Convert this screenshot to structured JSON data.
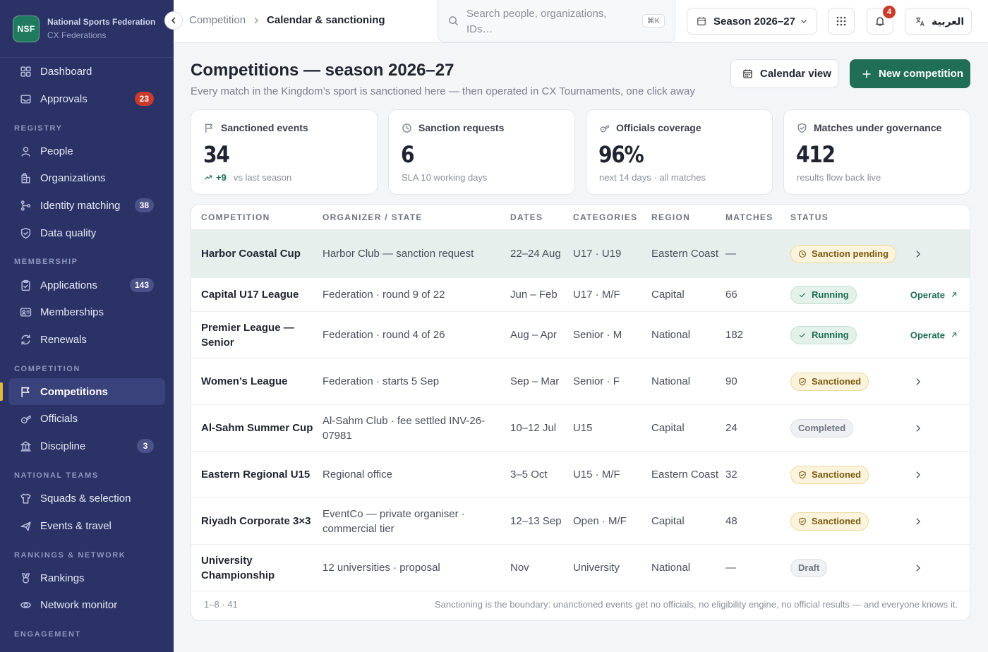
{
  "brand": {
    "logo": "NSF",
    "name": "National Sports Federation",
    "sub": "CX Federations"
  },
  "sidebar": {
    "top": [
      {
        "label": "Dashboard",
        "icon": "dashboard-icon"
      },
      {
        "label": "Approvals",
        "icon": "inbox-icon",
        "badge": "23",
        "badge_color": "#c93b2c"
      }
    ],
    "sections": [
      {
        "title": "REGISTRY",
        "items": [
          {
            "label": "People",
            "icon": "person-icon"
          },
          {
            "label": "Organizations",
            "icon": "building-icon"
          },
          {
            "label": "Identity matching",
            "icon": "branch-icon",
            "badge": "38"
          },
          {
            "label": "Data quality",
            "icon": "shield-check-icon"
          }
        ]
      },
      {
        "title": "MEMBERSHIP",
        "items": [
          {
            "label": "Applications",
            "icon": "clipboard-icon",
            "badge": "143"
          },
          {
            "label": "Memberships",
            "icon": "id-card-icon"
          },
          {
            "label": "Renewals",
            "icon": "refresh-icon"
          }
        ]
      },
      {
        "title": "COMPETITION",
        "items": [
          {
            "label": "Competitions",
            "icon": "flag-icon",
            "active": true
          },
          {
            "label": "Officials",
            "icon": "whistle-icon"
          },
          {
            "label": "Discipline",
            "icon": "court-icon",
            "badge": "3"
          }
        ]
      },
      {
        "title": "NATIONAL TEAMS",
        "items": [
          {
            "label": "Squads & selection",
            "icon": "shirt-icon"
          },
          {
            "label": "Events & travel",
            "icon": "plane-icon"
          }
        ]
      },
      {
        "title": "RANKINGS & NETWORK",
        "items": [
          {
            "label": "Rankings",
            "icon": "medal-icon"
          },
          {
            "label": "Network monitor",
            "icon": "eye-icon"
          }
        ]
      },
      {
        "title": "ENGAGEMENT",
        "items": []
      }
    ]
  },
  "topbar": {
    "breadcrumb": [
      "Competition",
      "Calendar & sanctioning"
    ],
    "search_placeholder": "Search people, organizations, IDs…",
    "search_shortcut": "⌘K",
    "season": "Season 2026–27",
    "notifications": "4",
    "language": "العربية"
  },
  "header": {
    "title": "Competitions — season 2026–27",
    "subtitle": "Every match in the Kingdom’s sport is sanctioned here — then operated in CX Tournaments, one click away",
    "calendar_button": "Calendar view",
    "new_button": "New competition"
  },
  "kpis": [
    {
      "label": "Sanctioned events",
      "icon": "flag-icon",
      "value": "34",
      "delta": "+9",
      "note": "vs last season"
    },
    {
      "label": "Sanction requests",
      "icon": "clock-icon",
      "value": "6",
      "note": "SLA 10 working days"
    },
    {
      "label": "Officials coverage",
      "icon": "whistle-icon",
      "value": "96%",
      "note": "next 14 days · all matches"
    },
    {
      "label": "Matches under governance",
      "icon": "shield-check-icon",
      "value": "412",
      "note": "results flow back live"
    }
  ],
  "table": {
    "columns": [
      "COMPETITION",
      "ORGANIZER / STATE",
      "DATES",
      "CATEGORIES",
      "REGION",
      "MATCHES",
      "STATUS"
    ],
    "rows": [
      {
        "name": "Harbor Coastal Cup",
        "organizer": "Harbor Club — sanction request",
        "dates": "22–24 Aug",
        "categories": "U17 · U19",
        "region": "Eastern Coast",
        "matches": "—",
        "status": "Sanction pending",
        "status_kind": "pending",
        "action": "chevron",
        "highlight": true
      },
      {
        "name": "Capital U17 League",
        "organizer": "Federation · round 9 of 22",
        "dates": "Jun – Feb",
        "categories": "U17 · M/F",
        "region": "Capital",
        "matches": "66",
        "status": "Running",
        "status_kind": "running",
        "action": "operate",
        "action_label": "Operate"
      },
      {
        "name": "Premier League — Senior",
        "organizer": "Federation · round 4 of 26",
        "dates": "Aug – Apr",
        "categories": "Senior · M",
        "region": "National",
        "matches": "182",
        "status": "Running",
        "status_kind": "running",
        "action": "operate",
        "action_label": "Operate"
      },
      {
        "name": "Women’s League",
        "organizer": "Federation · starts 5 Sep",
        "dates": "Sep – Mar",
        "categories": "Senior · F",
        "region": "National",
        "matches": "90",
        "status": "Sanctioned",
        "status_kind": "sanctioned",
        "action": "chevron"
      },
      {
        "name": "Al-Sahm Summer Cup",
        "organizer": "Al-Sahm Club · fee settled INV-26-07981",
        "dates": "10–12 Jul",
        "categories": "U15",
        "region": "Capital",
        "matches": "24",
        "status": "Completed",
        "status_kind": "completed",
        "action": "chevron"
      },
      {
        "name": "Eastern Regional U15",
        "organizer": "Regional office",
        "dates": "3–5 Oct",
        "categories": "U15 · M/F",
        "region": "Eastern Coast",
        "matches": "32",
        "status": "Sanctioned",
        "status_kind": "sanctioned",
        "action": "chevron"
      },
      {
        "name": "Riyadh Corporate 3×3",
        "organizer": "EventCo — private organiser · commercial tier",
        "dates": "12–13 Sep",
        "categories": "Open · M/F",
        "region": "Capital",
        "matches": "48",
        "status": "Sanctioned",
        "status_kind": "sanctioned",
        "action": "chevron"
      },
      {
        "name": "University Championship",
        "organizer": "12 universities · proposal",
        "dates": "Nov",
        "categories": "University",
        "region": "National",
        "matches": "—",
        "status": "Draft",
        "status_kind": "draft",
        "action": "chevron"
      }
    ],
    "pagination": "1–8 · 41",
    "footnote": "Sanctioning is the boundary: unanctioned events get no officials, no eligibility engine, no official results — and everyone knows it."
  },
  "colors": {
    "sidebar_bg": "#2a3266",
    "primary": "#1f6e55",
    "badge_red": "#c93b2c",
    "active_marker": "#e0b93a"
  }
}
